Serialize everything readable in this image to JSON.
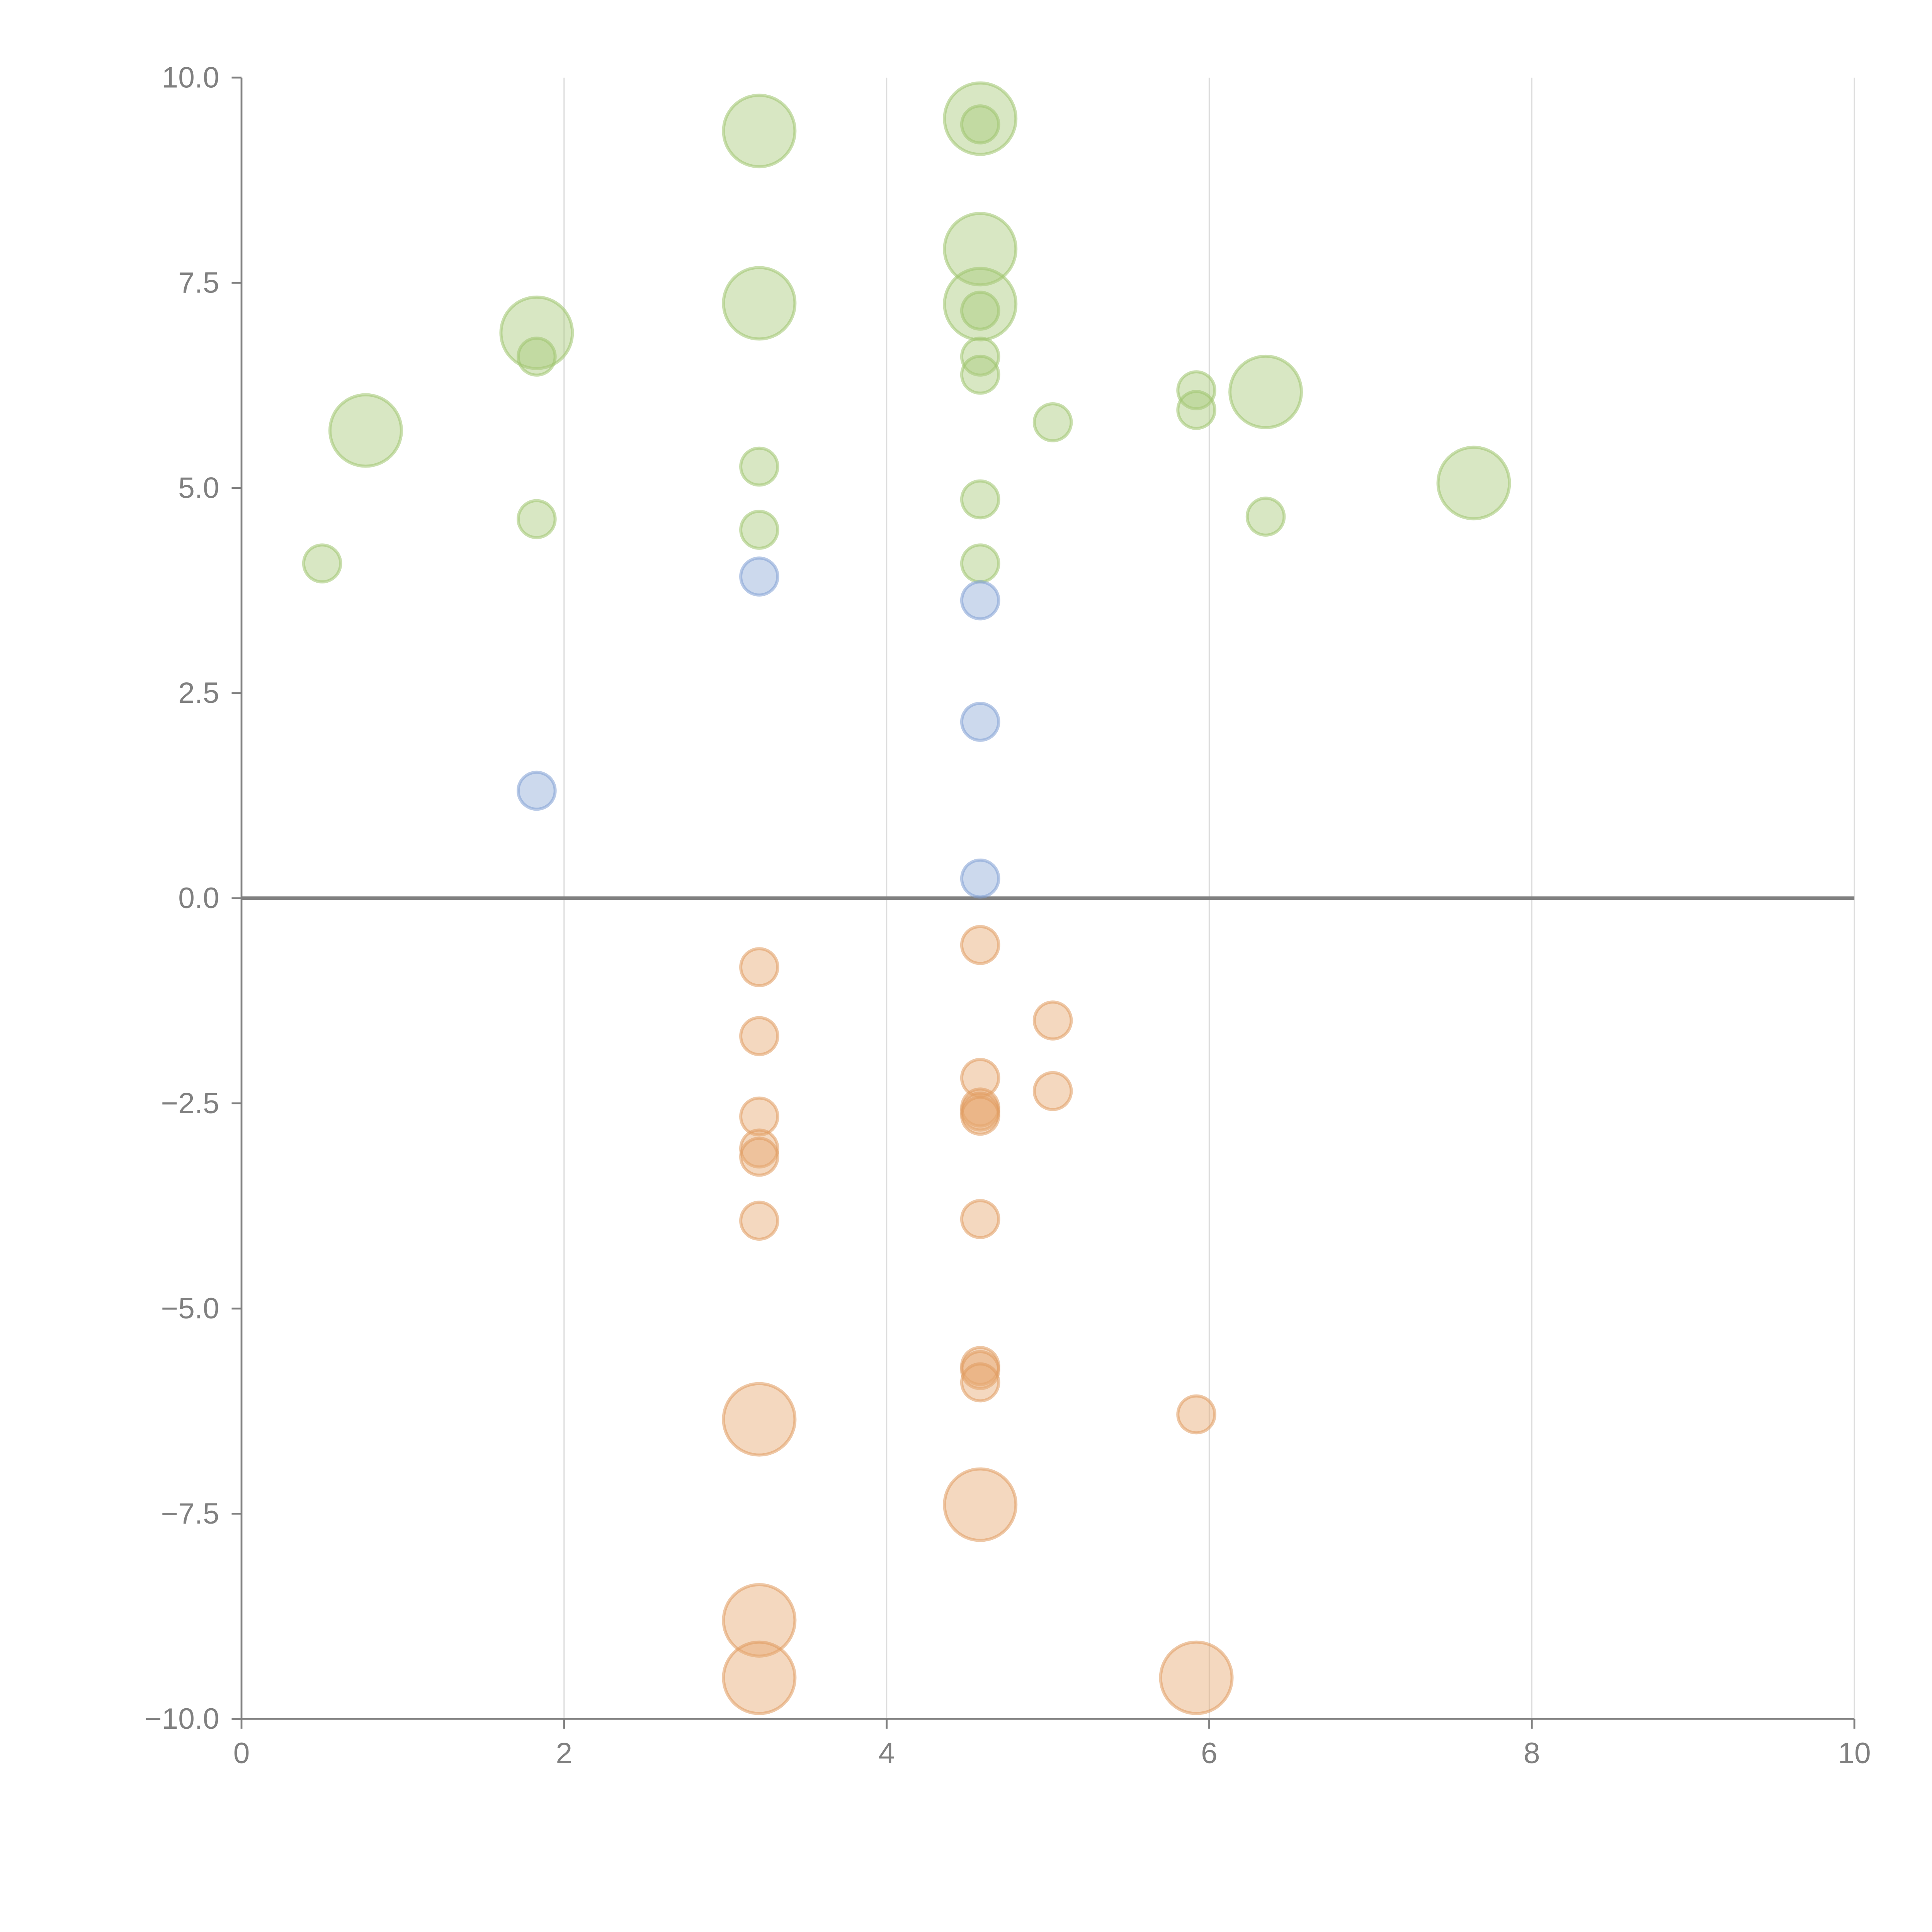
{
  "chart_data": {
    "type": "scatter",
    "subtype": "bubble",
    "title": "",
    "xlabel": "",
    "ylabel": "",
    "xlim": [
      0,
      10
    ],
    "ylim": [
      -10,
      10
    ],
    "grid": "vertical",
    "legend": "none",
    "x_ticks": [
      "0",
      "2",
      "4",
      "6",
      "8",
      "10"
    ],
    "y_ticks": [
      "10.0",
      "7.5",
      "5.0",
      "2.5",
      "0.0",
      "−2.5",
      "−5.0",
      "−7.5",
      "−10.0"
    ],
    "x_tick_values": [
      0,
      2,
      4,
      6,
      8,
      10
    ],
    "y_tick_values": [
      10,
      7.5,
      5,
      2.5,
      0,
      -2.5,
      -5,
      -7.5,
      -10
    ],
    "reference_line_y": 0,
    "size_legend": {
      "small": 1,
      "large": 2
    },
    "series": [
      {
        "name": "green",
        "color": "#a9c97a",
        "stroke": "#9fc46e",
        "points": [
          {
            "x": 0.5,
            "y": 4.08,
            "size": 1
          },
          {
            "x": 0.77,
            "y": 5.7,
            "size": 2
          },
          {
            "x": 1.83,
            "y": 6.89,
            "size": 2
          },
          {
            "x": 1.83,
            "y": 6.6,
            "size": 1
          },
          {
            "x": 1.83,
            "y": 4.62,
            "size": 1
          },
          {
            "x": 3.21,
            "y": 9.35,
            "size": 2
          },
          {
            "x": 3.21,
            "y": 7.25,
            "size": 2
          },
          {
            "x": 3.21,
            "y": 5.26,
            "size": 1
          },
          {
            "x": 3.21,
            "y": 4.49,
            "size": 1
          },
          {
            "x": 4.58,
            "y": 9.5,
            "size": 2
          },
          {
            "x": 4.58,
            "y": 9.43,
            "size": 1
          },
          {
            "x": 4.58,
            "y": 7.91,
            "size": 2
          },
          {
            "x": 4.58,
            "y": 7.24,
            "size": 2
          },
          {
            "x": 4.58,
            "y": 7.16,
            "size": 1
          },
          {
            "x": 4.58,
            "y": 6.6,
            "size": 1
          },
          {
            "x": 4.58,
            "y": 6.38,
            "size": 1
          },
          {
            "x": 4.58,
            "y": 4.86,
            "size": 1
          },
          {
            "x": 4.58,
            "y": 4.08,
            "size": 1
          },
          {
            "x": 5.03,
            "y": 5.8,
            "size": 1
          },
          {
            "x": 5.92,
            "y": 6.19,
            "size": 1
          },
          {
            "x": 5.92,
            "y": 5.95,
            "size": 1
          },
          {
            "x": 6.35,
            "y": 6.17,
            "size": 2
          },
          {
            "x": 6.35,
            "y": 4.65,
            "size": 1
          },
          {
            "x": 7.64,
            "y": 5.06,
            "size": 2
          }
        ]
      },
      {
        "name": "blue",
        "color": "#8eaad8",
        "stroke": "#7f9ed3",
        "points": [
          {
            "x": 1.83,
            "y": 1.31,
            "size": 1
          },
          {
            "x": 3.21,
            "y": 3.92,
            "size": 1
          },
          {
            "x": 4.58,
            "y": 3.63,
            "size": 1
          },
          {
            "x": 4.58,
            "y": 2.15,
            "size": 1
          },
          {
            "x": 4.58,
            "y": 0.24,
            "size": 1
          }
        ]
      },
      {
        "name": "orange",
        "color": "#e6a872",
        "stroke": "#e09a5e",
        "points": [
          {
            "x": 3.21,
            "y": -0.84,
            "size": 1
          },
          {
            "x": 3.21,
            "y": -1.68,
            "size": 1
          },
          {
            "x": 3.21,
            "y": -2.66,
            "size": 1
          },
          {
            "x": 3.21,
            "y": -3.05,
            "size": 1
          },
          {
            "x": 3.21,
            "y": -3.15,
            "size": 1
          },
          {
            "x": 3.21,
            "y": -3.93,
            "size": 1
          },
          {
            "x": 3.21,
            "y": -6.35,
            "size": 2
          },
          {
            "x": 3.21,
            "y": -8.8,
            "size": 2
          },
          {
            "x": 3.21,
            "y": -9.5,
            "size": 2
          },
          {
            "x": 4.58,
            "y": -0.57,
            "size": 1
          },
          {
            "x": 4.58,
            "y": -2.19,
            "size": 1
          },
          {
            "x": 4.58,
            "y": -2.55,
            "size": 1
          },
          {
            "x": 4.58,
            "y": -2.6,
            "size": 1
          },
          {
            "x": 4.58,
            "y": -2.65,
            "size": 1
          },
          {
            "x": 4.58,
            "y": -3.91,
            "size": 1
          },
          {
            "x": 4.58,
            "y": -5.7,
            "size": 1
          },
          {
            "x": 4.58,
            "y": -5.75,
            "size": 1
          },
          {
            "x": 4.58,
            "y": -5.9,
            "size": 1
          },
          {
            "x": 4.58,
            "y": -7.39,
            "size": 2
          },
          {
            "x": 5.03,
            "y": -1.49,
            "size": 1
          },
          {
            "x": 5.03,
            "y": -2.35,
            "size": 1
          },
          {
            "x": 5.92,
            "y": -6.29,
            "size": 1
          },
          {
            "x": 5.92,
            "y": -9.5,
            "size": 2
          }
        ]
      }
    ]
  }
}
